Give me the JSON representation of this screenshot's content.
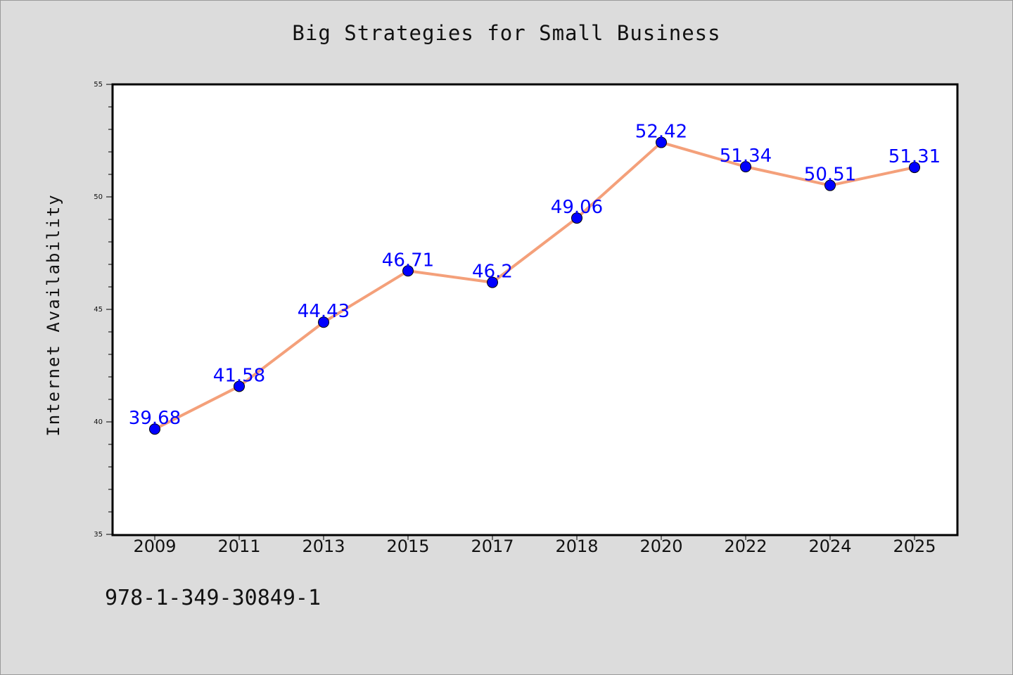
{
  "chart_data": {
    "type": "line",
    "title": "Big Strategies for Small Business",
    "xlabel": "",
    "ylabel": "Internet Availability",
    "categories": [
      "2009",
      "2011",
      "2013",
      "2015",
      "2017",
      "2018",
      "2020",
      "2022",
      "2024",
      "2025"
    ],
    "series": [
      {
        "values": [
          39.68,
          41.58,
          44.43,
          46.71,
          46.2,
          49.06,
          52.42,
          51.34,
          50.51,
          51.31
        ],
        "labels": [
          "39.68",
          "41.58",
          "44.43",
          "46.71",
          "46.2",
          "49.06",
          "52.42",
          "51.34",
          "50.51",
          "51.31"
        ],
        "line_color": "#f4a07a",
        "marker_color": "#0000ff"
      }
    ],
    "ylim": [
      35,
      55
    ],
    "yticks": [
      "35",
      "40",
      "45",
      "50",
      "55"
    ],
    "grid": false,
    "legend": "none"
  },
  "footnote": "978-1-349-30849-1"
}
